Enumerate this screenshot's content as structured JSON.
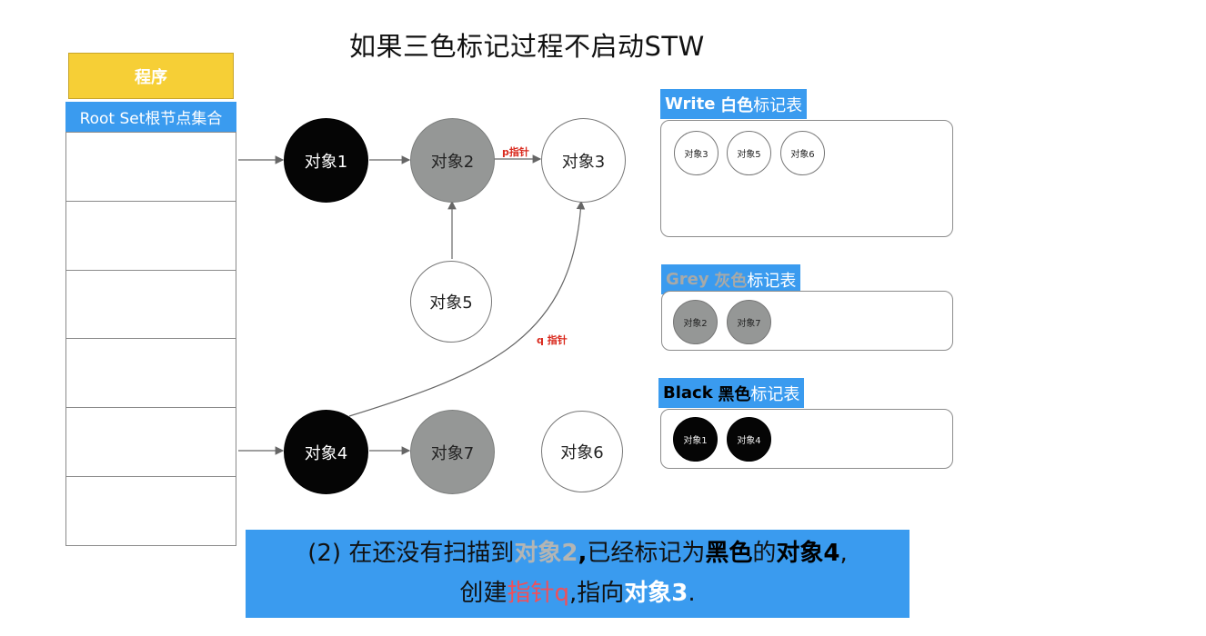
{
  "title": "如果三色标记过程不启动STW",
  "program": {
    "label": "程序"
  },
  "root_set": {
    "label": "Root Set根节点集合"
  },
  "nodes": {
    "obj1": "对象1",
    "obj2": "对象2",
    "obj3": "对象3",
    "obj4": "对象4",
    "obj5": "对象5",
    "obj6": "对象6",
    "obj7": "对象7"
  },
  "edge_labels": {
    "p": "p指针",
    "q": "q 指针"
  },
  "tables": {
    "white": {
      "keyword": "Write",
      "color_word": "白色",
      "suffix": "标记表",
      "items": [
        "对象3",
        "对象5",
        "对象6"
      ]
    },
    "grey": {
      "keyword": "Grey",
      "color_word": "灰色",
      "suffix": "标记表",
      "items": [
        "对象2",
        "对象7"
      ]
    },
    "black": {
      "keyword": "Black",
      "color_word": "黑色",
      "suffix": "标记表",
      "items": [
        "对象1",
        "对象4"
      ]
    }
  },
  "caption": {
    "p1": "(2) 在还没有扫描到",
    "p2": "对象2",
    "p3": ",",
    "p4": "已经标记为",
    "p5": "黑色",
    "p6": "的",
    "p7": "对象4",
    "p8": ",",
    "p9": "创建",
    "p10": "指针q",
    "p11": ",指向",
    "p12": "对象3",
    "p13": "."
  },
  "colors": {
    "accent_blue": "#3a9bef",
    "program_yellow": "#f6cf36",
    "grey_node": "#959796",
    "pointer_red": "#d9281c"
  }
}
